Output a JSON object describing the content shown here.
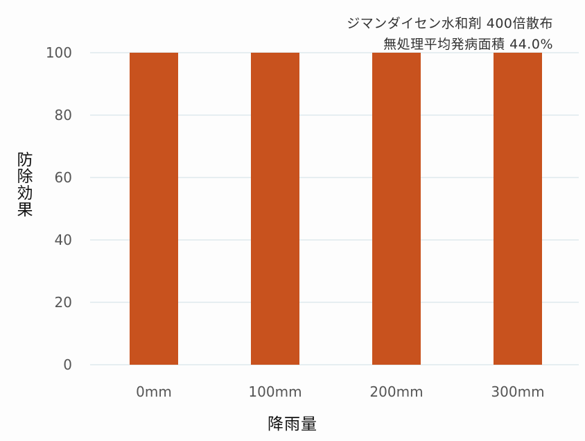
{
  "chart_data": {
    "type": "bar",
    "categories": [
      "0mm",
      "100mm",
      "200mm",
      "300mm"
    ],
    "values": [
      100,
      100,
      100,
      100
    ],
    "xlabel": "降雨量",
    "ylabel": "防除効果",
    "ylim": [
      0,
      100
    ],
    "yticks": [
      "0",
      "20",
      "40",
      "60",
      "80",
      "100"
    ],
    "grid": "horizontal",
    "annotations": [
      "ジマンダイセン水和剤 400倍散布",
      "無処理平均発病面積 44.0%"
    ],
    "bar_color": "#c8521e",
    "grid_color": "#d9e6ea",
    "tick_color": "#555555"
  }
}
